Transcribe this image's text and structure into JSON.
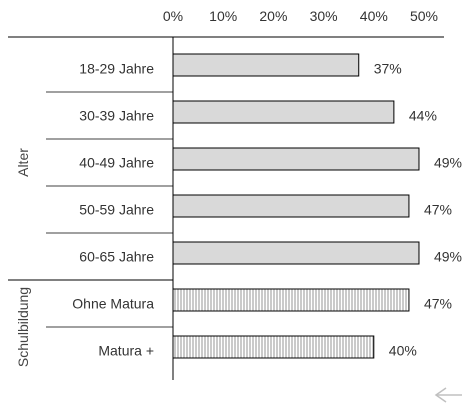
{
  "chart_data": {
    "type": "bar",
    "orientation": "horizontal",
    "xlim": [
      0,
      50
    ],
    "x_ticks": [
      "0%",
      "10%",
      "20%",
      "30%",
      "40%",
      "50%"
    ],
    "x_tick_values": [
      0,
      10,
      20,
      30,
      40,
      50
    ],
    "categories": [
      "18-29 Jahre",
      "30-39 Jahre",
      "40-49 Jahre",
      "50-59 Jahre",
      "60-65 Jahre",
      "Ohne Matura",
      "Matura +"
    ],
    "values": [
      37,
      44,
      49,
      47,
      49,
      47,
      40
    ],
    "value_labels": [
      "37%",
      "44%",
      "49%",
      "47%",
      "49%",
      "47%",
      "40%"
    ],
    "bar_fill": [
      "solid",
      "solid",
      "solid",
      "solid",
      "solid",
      "hatched",
      "hatched"
    ],
    "groups": [
      {
        "label": "Alter",
        "categories": [
          "18-29 Jahre",
          "30-39 Jahre",
          "40-49 Jahre",
          "50-59 Jahre",
          "60-65 Jahre"
        ]
      },
      {
        "label": "Schulbildung",
        "categories": [
          "Ohne Matura",
          "Matura +"
        ]
      }
    ],
    "legend": "none",
    "grid": false
  },
  "colors": {
    "bar_fill": "#d9d9d9",
    "bar_stroke": "#000000",
    "axis": "#000000",
    "text": "#333333",
    "arrow": "#c0c0c0"
  },
  "annotation": {
    "arrow_icon": "arrow-left-icon"
  }
}
